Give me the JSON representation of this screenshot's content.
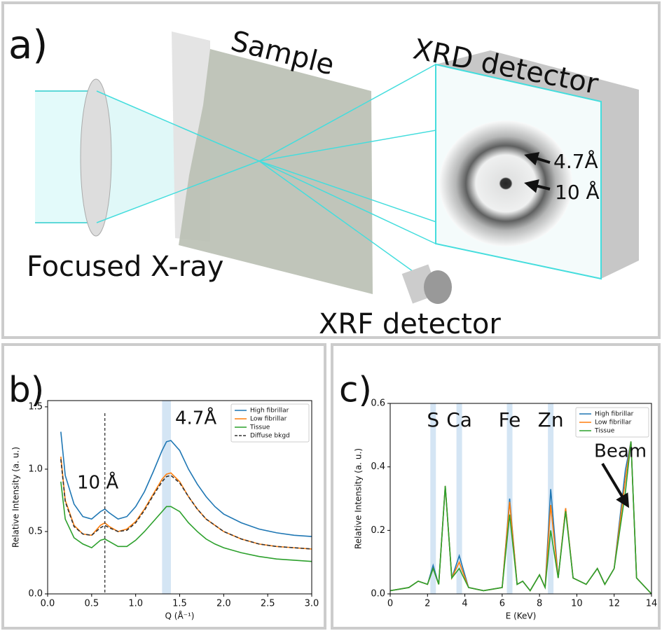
{
  "diagram": {
    "panel_label": "a)",
    "sample": "Sample",
    "xrd_detector": "XRD detector",
    "ring_outer": "4.7Å",
    "ring_inner": "10 Å",
    "source": "Focused X-ray",
    "xrf_detector": "XRF detector"
  },
  "chart_data": [
    {
      "type": "line",
      "panel_label": "b)",
      "xlabel": "Q (Å⁻¹)",
      "ylabel": "Relative Intensity (a. u.)",
      "x": [
        0.15,
        0.2,
        0.3,
        0.4,
        0.5,
        0.6,
        0.65,
        0.7,
        0.8,
        0.9,
        1.0,
        1.1,
        1.2,
        1.3,
        1.35,
        1.4,
        1.5,
        1.6,
        1.7,
        1.8,
        1.9,
        2.0,
        2.2,
        2.4,
        2.6,
        2.8,
        3.0
      ],
      "series": [
        {
          "name": "High fibrillar",
          "color": "#1f77b4",
          "values": [
            1.3,
            0.95,
            0.72,
            0.62,
            0.6,
            0.66,
            0.68,
            0.65,
            0.6,
            0.62,
            0.7,
            0.82,
            0.98,
            1.15,
            1.22,
            1.23,
            1.15,
            1.0,
            0.88,
            0.78,
            0.7,
            0.64,
            0.57,
            0.52,
            0.49,
            0.47,
            0.46
          ]
        },
        {
          "name": "Low fibrillar",
          "color": "#ff7f0e",
          "values": [
            1.1,
            0.75,
            0.55,
            0.48,
            0.47,
            0.55,
            0.57,
            0.54,
            0.5,
            0.52,
            0.58,
            0.68,
            0.8,
            0.92,
            0.96,
            0.97,
            0.9,
            0.78,
            0.68,
            0.6,
            0.55,
            0.5,
            0.44,
            0.4,
            0.38,
            0.37,
            0.36
          ]
        },
        {
          "name": "Tissue",
          "color": "#2ca02c",
          "values": [
            0.9,
            0.6,
            0.45,
            0.4,
            0.37,
            0.43,
            0.44,
            0.42,
            0.38,
            0.38,
            0.43,
            0.5,
            0.58,
            0.66,
            0.7,
            0.7,
            0.66,
            0.57,
            0.5,
            0.44,
            0.4,
            0.37,
            0.33,
            0.3,
            0.28,
            0.27,
            0.26
          ]
        },
        {
          "name": "Diffuse bkgd",
          "color": "#333333",
          "dashed": true,
          "values": [
            1.08,
            0.74,
            0.54,
            0.48,
            0.47,
            0.53,
            0.55,
            0.53,
            0.5,
            0.51,
            0.57,
            0.67,
            0.79,
            0.9,
            0.94,
            0.95,
            0.89,
            0.78,
            0.68,
            0.6,
            0.55,
            0.5,
            0.44,
            0.4,
            0.38,
            0.37,
            0.36
          ]
        }
      ],
      "vline": 0.65,
      "bands": [
        [
          1.3,
          1.4
        ]
      ],
      "annotations": [
        "10 Å",
        "4.7Å"
      ],
      "xlim": [
        0,
        3
      ],
      "ylim": [
        0,
        1.55
      ],
      "xticks": [
        {
          "value": 0,
          "label": "0.0"
        },
        {
          "value": 0.5,
          "label": "0.5"
        },
        {
          "value": 1,
          "label": "1.0"
        },
        {
          "value": 1.5,
          "label": "1.5"
        },
        {
          "value": 2,
          "label": "2.0"
        },
        {
          "value": 2.5,
          "label": "2.5"
        },
        {
          "value": 3,
          "label": "3.0"
        }
      ],
      "yticks": [
        {
          "value": 0,
          "label": "0.0"
        },
        0.5,
        {
          "value": 1,
          "label": "1.0"
        },
        1.5
      ],
      "legend": "upper right"
    },
    {
      "type": "line",
      "panel_label": "c)",
      "xlabel": "E (KeV)",
      "ylabel": "Relative Intensity (a. u.)",
      "x": [
        0,
        1,
        1.5,
        2,
        2.3,
        2.6,
        2.95,
        3.3,
        3.7,
        4.2,
        5,
        6,
        6.4,
        6.8,
        7.1,
        7.5,
        8,
        8.3,
        8.6,
        9,
        9.4,
        9.8,
        10.5,
        11.1,
        11.5,
        12,
        12.6,
        12.9,
        13.2,
        14
      ],
      "series": [
        {
          "name": "High fibrillar",
          "color": "#1f77b4",
          "values": [
            0.01,
            0.02,
            0.04,
            0.03,
            0.09,
            0.03,
            0.34,
            0.05,
            0.12,
            0.02,
            0.01,
            0.02,
            0.3,
            0.03,
            0.04,
            0.01,
            0.06,
            0.02,
            0.33,
            0.05,
            0.27,
            0.05,
            0.03,
            0.08,
            0.03,
            0.08,
            0.39,
            0.48,
            0.05,
            0.0
          ]
        },
        {
          "name": "Low fibrillar",
          "color": "#ff7f0e",
          "values": [
            0.01,
            0.02,
            0.04,
            0.03,
            0.08,
            0.03,
            0.34,
            0.05,
            0.1,
            0.02,
            0.01,
            0.02,
            0.29,
            0.03,
            0.04,
            0.01,
            0.06,
            0.02,
            0.28,
            0.05,
            0.27,
            0.05,
            0.03,
            0.08,
            0.03,
            0.08,
            0.36,
            0.48,
            0.05,
            0.0
          ]
        },
        {
          "name": "Tissue",
          "color": "#2ca02c",
          "values": [
            0.01,
            0.02,
            0.04,
            0.03,
            0.08,
            0.03,
            0.34,
            0.05,
            0.08,
            0.02,
            0.01,
            0.02,
            0.25,
            0.03,
            0.04,
            0.01,
            0.06,
            0.02,
            0.2,
            0.05,
            0.26,
            0.05,
            0.03,
            0.08,
            0.03,
            0.08,
            0.32,
            0.48,
            0.05,
            0.0
          ]
        }
      ],
      "bands": [
        [
          2.15,
          2.45
        ],
        [
          3.55,
          3.85
        ],
        [
          6.25,
          6.55
        ],
        [
          8.45,
          8.75
        ]
      ],
      "band_labels": [
        "S",
        "Ca",
        "Fe",
        "Zn"
      ],
      "annotations": [
        "Beam"
      ],
      "xlim": [
        0,
        14
      ],
      "ylim": [
        0,
        0.6
      ],
      "xticks": [
        0,
        2,
        4,
        6,
        8,
        10,
        12,
        14
      ],
      "yticks": [
        {
          "value": 0,
          "label": "0.0"
        },
        0.2,
        0.4,
        0.6
      ],
      "legend": "upper right"
    }
  ]
}
